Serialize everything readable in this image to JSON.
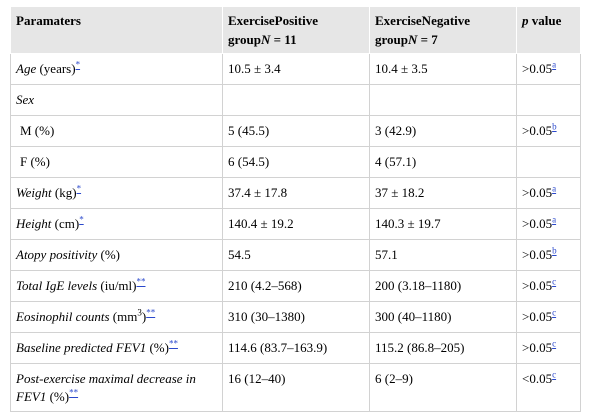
{
  "header": {
    "col1": "Paramaters",
    "col2_line1": "ExercisePositive",
    "col2_line2": "group",
    "col2_n": "N",
    "col2_n_val": " = 11",
    "col3_line1": "ExerciseNegative",
    "col3_line2": "group",
    "col3_n": "N",
    "col3_n_val": " = 7",
    "col4_p": "p",
    "col4_rest": " value"
  },
  "rows": [
    {
      "label_it": "Age",
      "label_rest": " (years)",
      "mark": "*",
      "pos": "10.5 ± 3.4",
      "neg": "10.4 ± 3.5",
      "p": ">0.05",
      "pnote": "a"
    },
    {
      "label_it": "Sex",
      "label_rest": "",
      "mark": "",
      "pos": "",
      "neg": "",
      "p": "",
      "pnote": ""
    },
    {
      "label_it": "",
      "label_rest": "M (%)",
      "mark": "",
      "pos": "5 (45.5)",
      "neg": "3 (42.9)",
      "p": ">0.05",
      "pnote": "b"
    },
    {
      "label_it": "",
      "label_rest": "F (%)",
      "mark": "",
      "pos": "6 (54.5)",
      "neg": "4 (57.1)",
      "p": "",
      "pnote": ""
    },
    {
      "label_it": "Weight",
      "label_rest": " (kg)",
      "mark": "*",
      "pos": "37.4 ± 17.8",
      "neg": "37 ± 18.2",
      "p": ">0.05",
      "pnote": "a"
    },
    {
      "label_it": "Height",
      "label_rest": " (cm)",
      "mark": "*",
      "pos": "140.4 ± 19.2",
      "neg": "140.3 ± 19.7",
      "p": ">0.05",
      "pnote": "a"
    },
    {
      "label_it": "Atopy positivity",
      "label_rest": " (%)",
      "mark": "",
      "pos": "54.5",
      "neg": "57.1",
      "p": ">0.05",
      "pnote": "b"
    },
    {
      "label_it": "Total IgE levels",
      "label_rest": " (iu/ml)",
      "mark": "**",
      "pos": "210 (4.2–568)",
      "neg": "200 (3.18–1180)",
      "p": ">0.05",
      "pnote": "c"
    },
    {
      "label_it": "Eosinophil counts",
      "label_rest": " (mm",
      "sup3": "3",
      "label_after": ")",
      "mark": "**",
      "pos": "310 (30–1380)",
      "neg": "300 (40–1180)",
      "p": ">0.05",
      "pnote": "c"
    },
    {
      "label_it": "Baseline predicted FEV1",
      "label_rest": " (%)",
      "mark": "**",
      "pos": "114.6 (83.7–163.9)",
      "neg": "115.2 (86.8–205)",
      "p": ">0.05",
      "pnote": "c"
    },
    {
      "label_it": "Post-exercise maximal decrease in FEV1",
      "label_rest": " (%)",
      "mark": "**",
      "pos": "16 (12–40)",
      "neg": "6 (2–9)",
      "p": "<0.05",
      "pnote": "c"
    }
  ]
}
